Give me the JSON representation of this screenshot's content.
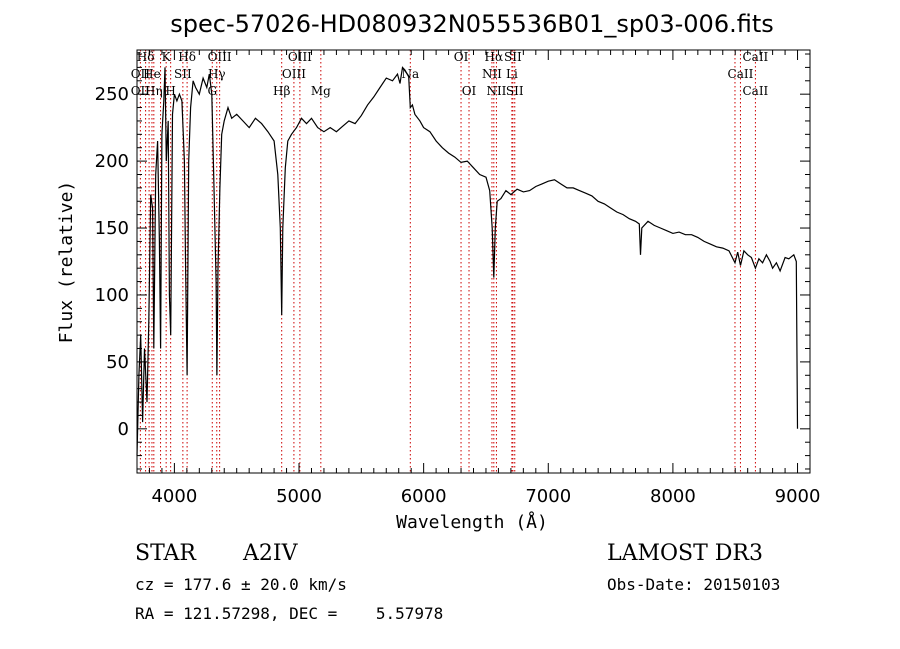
{
  "chart_data": {
    "type": "line",
    "title": "spec-57026-HD080932N055536B01_sp03-006.fits",
    "xlabel": "Wavelength (Å)",
    "ylabel": "Flux (relative)",
    "xlim": [
      3700,
      9100
    ],
    "ylim": [
      -33,
      283
    ],
    "xticks": [
      4000,
      5000,
      6000,
      7000,
      8000,
      9000
    ],
    "yticks": [
      0,
      50,
      100,
      150,
      200,
      250
    ],
    "series": [
      {
        "name": "flux",
        "points": [
          [
            3700,
            -20
          ],
          [
            3715,
            40
          ],
          [
            3730,
            70
          ],
          [
            3745,
            5
          ],
          [
            3760,
            60
          ],
          [
            3780,
            20
          ],
          [
            3795,
            80
          ],
          [
            3810,
            175
          ],
          [
            3825,
            165
          ],
          [
            3835,
            60
          ],
          [
            3850,
            190
          ],
          [
            3865,
            215
          ],
          [
            3880,
            140
          ],
          [
            3889,
            60
          ],
          [
            3900,
            220
          ],
          [
            3915,
            245
          ],
          [
            3925,
            270
          ],
          [
            3935,
            200
          ],
          [
            3950,
            230
          ],
          [
            3960,
            100
          ],
          [
            3970,
            70
          ],
          [
            3985,
            235
          ],
          [
            4000,
            250
          ],
          [
            4020,
            245
          ],
          [
            4040,
            250
          ],
          [
            4060,
            245
          ],
          [
            4080,
            200
          ],
          [
            4090,
            120
          ],
          [
            4102,
            40
          ],
          [
            4115,
            200
          ],
          [
            4130,
            240
          ],
          [
            4150,
            260
          ],
          [
            4170,
            255
          ],
          [
            4200,
            250
          ],
          [
            4230,
            262
          ],
          [
            4260,
            255
          ],
          [
            4280,
            265
          ],
          [
            4300,
            250
          ],
          [
            4320,
            170
          ],
          [
            4335,
            110
          ],
          [
            4341,
            40
          ],
          [
            4350,
            120
          ],
          [
            4365,
            180
          ],
          [
            4380,
            220
          ],
          [
            4400,
            230
          ],
          [
            4430,
            240
          ],
          [
            4460,
            232
          ],
          [
            4500,
            235
          ],
          [
            4550,
            230
          ],
          [
            4600,
            225
          ],
          [
            4650,
            232
          ],
          [
            4700,
            228
          ],
          [
            4750,
            222
          ],
          [
            4800,
            215
          ],
          [
            4830,
            190
          ],
          [
            4850,
            150
          ],
          [
            4861,
            85
          ],
          [
            4870,
            150
          ],
          [
            4890,
            195
          ],
          [
            4910,
            215
          ],
          [
            4940,
            220
          ],
          [
            4980,
            225
          ],
          [
            5020,
            232
          ],
          [
            5060,
            228
          ],
          [
            5100,
            232
          ],
          [
            5150,
            225
          ],
          [
            5200,
            222
          ],
          [
            5250,
            225
          ],
          [
            5300,
            222
          ],
          [
            5350,
            226
          ],
          [
            5400,
            230
          ],
          [
            5450,
            228
          ],
          [
            5500,
            234
          ],
          [
            5550,
            242
          ],
          [
            5600,
            248
          ],
          [
            5650,
            255
          ],
          [
            5700,
            262
          ],
          [
            5750,
            260
          ],
          [
            5790,
            265
          ],
          [
            5810,
            258
          ],
          [
            5830,
            270
          ],
          [
            5850,
            268
          ],
          [
            5880,
            263
          ],
          [
            5893,
            240
          ],
          [
            5910,
            242
          ],
          [
            5930,
            235
          ],
          [
            5970,
            230
          ],
          [
            6000,
            225
          ],
          [
            6050,
            222
          ],
          [
            6100,
            215
          ],
          [
            6150,
            210
          ],
          [
            6200,
            206
          ],
          [
            6250,
            203
          ],
          [
            6300,
            199
          ],
          [
            6350,
            200
          ],
          [
            6400,
            195
          ],
          [
            6450,
            190
          ],
          [
            6500,
            188
          ],
          [
            6530,
            178
          ],
          [
            6550,
            150
          ],
          [
            6563,
            113
          ],
          [
            6575,
            150
          ],
          [
            6590,
            170
          ],
          [
            6620,
            172
          ],
          [
            6660,
            178
          ],
          [
            6700,
            175
          ],
          [
            6750,
            179
          ],
          [
            6800,
            177
          ],
          [
            6850,
            178
          ],
          [
            6900,
            181
          ],
          [
            6950,
            183
          ],
          [
            7000,
            185
          ],
          [
            7050,
            186
          ],
          [
            7100,
            183
          ],
          [
            7150,
            180
          ],
          [
            7200,
            180
          ],
          [
            7250,
            178
          ],
          [
            7300,
            176
          ],
          [
            7350,
            174
          ],
          [
            7400,
            170
          ],
          [
            7450,
            168
          ],
          [
            7500,
            165
          ],
          [
            7550,
            162
          ],
          [
            7600,
            160
          ],
          [
            7650,
            157
          ],
          [
            7700,
            155
          ],
          [
            7730,
            153
          ],
          [
            7740,
            130
          ],
          [
            7750,
            150
          ],
          [
            7800,
            155
          ],
          [
            7850,
            152
          ],
          [
            7900,
            150
          ],
          [
            7950,
            148
          ],
          [
            8000,
            146
          ],
          [
            8050,
            147
          ],
          [
            8100,
            145
          ],
          [
            8150,
            145
          ],
          [
            8200,
            143
          ],
          [
            8250,
            140
          ],
          [
            8300,
            138
          ],
          [
            8350,
            136
          ],
          [
            8400,
            135
          ],
          [
            8450,
            133
          ],
          [
            8498,
            124
          ],
          [
            8520,
            132
          ],
          [
            8542,
            122
          ],
          [
            8570,
            133
          ],
          [
            8600,
            130
          ],
          [
            8630,
            128
          ],
          [
            8662,
            120
          ],
          [
            8690,
            127
          ],
          [
            8720,
            124
          ],
          [
            8750,
            130
          ],
          [
            8780,
            125
          ],
          [
            8800,
            120
          ],
          [
            8830,
            124
          ],
          [
            8860,
            118
          ],
          [
            8900,
            128
          ],
          [
            8930,
            127
          ],
          [
            8970,
            130
          ],
          [
            8990,
            125
          ],
          [
            9000,
            0
          ]
        ]
      }
    ],
    "spectral_lines": [
      {
        "label": "Hδ",
        "x": 3769,
        "row": 1
      },
      {
        "label": "OII",
        "x": 3727,
        "row": 2
      },
      {
        "label": "OII",
        "x": 3727,
        "row": 3
      },
      {
        "label": "He",
        "x": 3820,
        "row": 2
      },
      {
        "label": "Hη",
        "x": 3835,
        "row": 3
      },
      {
        "label": "H",
        "x": 3970,
        "row": 3
      },
      {
        "label": "K",
        "x": 3934,
        "row": 1
      },
      {
        "label": "SII",
        "x": 4068,
        "row": 2
      },
      {
        "label": "Hδ",
        "x": 4102,
        "row": 1
      },
      {
        "label": "OIII",
        "x": 4363,
        "row": 1
      },
      {
        "label": "Hγ",
        "x": 4340,
        "row": 2
      },
      {
        "label": "G",
        "x": 4304,
        "row": 3
      },
      {
        "label": "Hβ",
        "x": 4861,
        "row": 3
      },
      {
        "label": "OIII",
        "x": 5007,
        "row": 1
      },
      {
        "label": "OIII",
        "x": 4959,
        "row": 2
      },
      {
        "label": "Mg",
        "x": 5175,
        "row": 3
      },
      {
        "label": "Na",
        "x": 5893,
        "row": 2
      },
      {
        "label": "OI",
        "x": 6300,
        "row": 1
      },
      {
        "label": "OI",
        "x": 6364,
        "row": 3
      },
      {
        "label": "Hα",
        "x": 6563,
        "row": 1
      },
      {
        "label": "SII",
        "x": 6716,
        "row": 1
      },
      {
        "label": "NII",
        "x": 6548,
        "row": 2
      },
      {
        "label": "Li",
        "x": 6708,
        "row": 2
      },
      {
        "label": "NII",
        "x": 6584,
        "row": 3
      },
      {
        "label": "SII",
        "x": 6731,
        "row": 3
      },
      {
        "label": "CaII",
        "x": 8662,
        "row": 1
      },
      {
        "label": "CaII",
        "x": 8542,
        "row": 2
      },
      {
        "label": "CaII",
        "x": 8662,
        "row": 3
      }
    ],
    "line_markers_x": [
      3727,
      3769,
      3797,
      3820,
      3835,
      3889,
      3934,
      3970,
      4068,
      4102,
      4304,
      4340,
      4363,
      4861,
      4959,
      5007,
      5175,
      5893,
      6300,
      6364,
      6548,
      6563,
      6584,
      6708,
      6716,
      6731,
      8498,
      8542,
      8662
    ]
  },
  "info": {
    "object_class": "STAR",
    "subclass": "A2IV",
    "survey": "LAMOST DR3",
    "cz_text": "cz = 177.6 ± 20.0 km/s",
    "obs_date_text": "Obs-Date: 20150103",
    "radec_text": "RA = 121.57298, DEC =    5.57978"
  },
  "colors": {
    "spectrum": "#000000",
    "marker": "#cc0000",
    "axis": "#000000"
  }
}
